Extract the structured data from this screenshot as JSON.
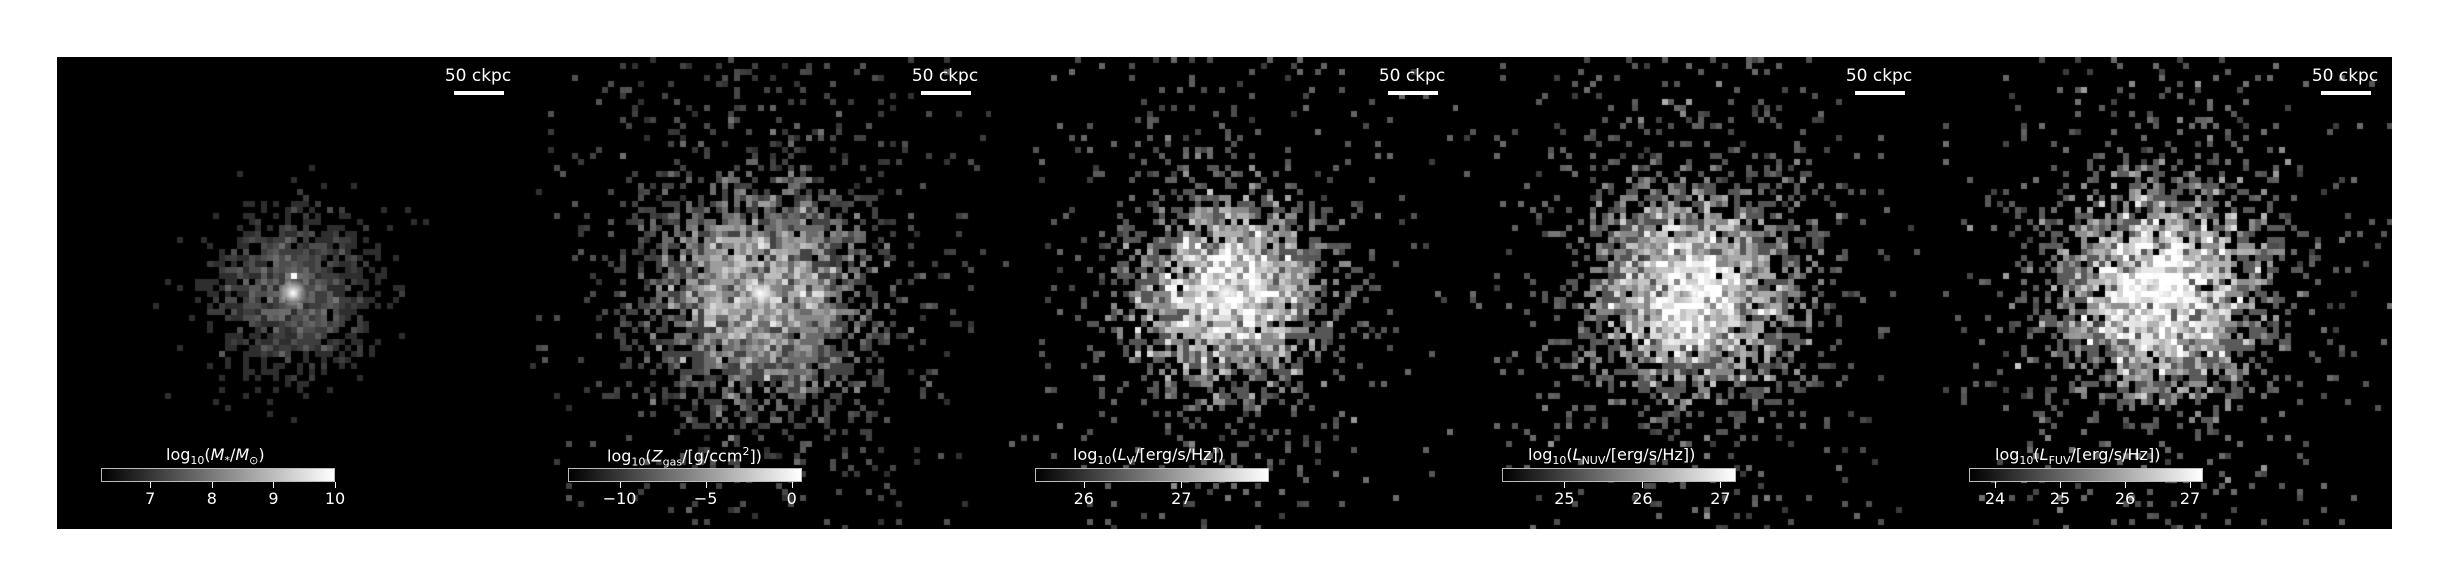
{
  "figure": {
    "background": "#ffffff",
    "panel_background": "#000000"
  },
  "chart_data": [
    {
      "type": "heatmap",
      "title": "",
      "colormap": "gray",
      "colorbar_label": "log10(M*/M⊙)",
      "colorbar_range": [
        6.2,
        10.0
      ],
      "colorbar_ticks": [
        "7",
        "8",
        "9",
        "10"
      ],
      "colorbar_tick_values": [
        7,
        8,
        9,
        10
      ],
      "scale_bar_label": "50 ckpc"
    },
    {
      "type": "heatmap",
      "title": "",
      "colormap": "gray",
      "colorbar_label": "log10(Zgas/[g/ccm2])",
      "colorbar_range": [
        -13.0,
        0.6
      ],
      "colorbar_ticks": [
        "−10",
        "−5",
        "0"
      ],
      "colorbar_tick_values": [
        -10,
        -5,
        0
      ],
      "scale_bar_label": "50 ckpc"
    },
    {
      "type": "heatmap",
      "title": "",
      "colormap": "gray",
      "colorbar_label": "log10(LV/[erg/s/Hz])",
      "colorbar_range": [
        25.5,
        27.9
      ],
      "colorbar_ticks": [
        "26",
        "27"
      ],
      "colorbar_tick_values": [
        26,
        27
      ],
      "scale_bar_label": "50 ckpc"
    },
    {
      "type": "heatmap",
      "title": "",
      "colormap": "gray",
      "colorbar_label": "log10(LNUV/[erg/s/Hz])",
      "colorbar_range": [
        24.2,
        27.2
      ],
      "colorbar_ticks": [
        "25",
        "26",
        "27"
      ],
      "colorbar_tick_values": [
        25,
        26,
        27
      ],
      "scale_bar_label": "50 ckpc"
    },
    {
      "type": "heatmap",
      "title": "",
      "colormap": "gray",
      "colorbar_label": "log10(LFUV/[erg/s/Hz])",
      "colorbar_range": [
        23.6,
        27.2
      ],
      "colorbar_ticks": [
        "24",
        "25",
        "26",
        "27"
      ],
      "colorbar_tick_values": [
        24,
        25,
        26,
        27
      ],
      "scale_bar_label": "50 ckpc"
    }
  ],
  "labels": {
    "p0": {
      "pre": "log",
      "sub1": "10",
      "mid": "(",
      "var": "M",
      "sub2": "*",
      "rest": "/",
      "var2": "M",
      "sub3": "⊙",
      "end": ")"
    },
    "p1": {
      "pre": "log",
      "sub1": "10",
      "mid": "(",
      "var": "Z",
      "sub2": "gas",
      "rest": "/[g/ccm",
      "sup": "2",
      "end": "])"
    },
    "p2": {
      "pre": "log",
      "sub1": "10",
      "mid": "(",
      "var": "L",
      "sub2": "V",
      "end": "/[erg/s/Hz])"
    },
    "p3": {
      "pre": "log",
      "sub1": "10",
      "mid": "(",
      "var": "L",
      "sub2": "NUV",
      "end": "/[erg/s/Hz])"
    },
    "p4": {
      "pre": "log",
      "sub1": "10",
      "mid": "(",
      "var": "L",
      "sub2": "FUV",
      "end": "/[erg/s/Hz])"
    }
  }
}
